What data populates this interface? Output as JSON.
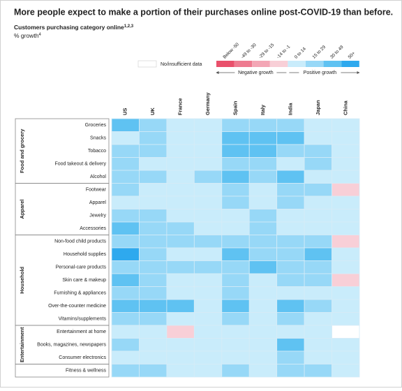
{
  "chart_data": {
    "type": "heatmap",
    "title": "More people expect to make a portion of their purchases online post-COVID-19 than before.",
    "subtitle": "Customers purchasing category online",
    "subtitle_sup": "1,2,3",
    "unit_label": "% growth",
    "unit_sup": "4",
    "legend": {
      "no_data": "No/insufficient data",
      "bins": [
        "Below -50",
        "-49 to -30",
        "-29 to -15",
        "-14 to -1",
        "0 to 14",
        "15 to 29",
        "30 to 49",
        "50+"
      ],
      "colors": [
        "#e9506b",
        "#ee7b90",
        "#f3a6b5",
        "#f8cfd7",
        "#c9ecfb",
        "#97d8f7",
        "#5fc2f2",
        "#2ea9ee"
      ],
      "negative": "Negative growth",
      "positive": "Positive growth"
    },
    "columns": [
      "US",
      "UK",
      "France",
      "Germany",
      "Spain",
      "Italy",
      "India",
      "Japan",
      "China"
    ],
    "groups": [
      {
        "name": "Food and grocery",
        "rows": [
          {
            "label": "Groceries",
            "values": [
              6,
              5,
              4,
              4,
              5,
              5,
              5,
              4,
              4
            ]
          },
          {
            "label": "Snacks",
            "values": [
              4,
              5,
              4,
              4,
              6,
              6,
              6,
              4,
              4
            ]
          },
          {
            "label": "Tobacco",
            "values": [
              5,
              5,
              4,
              4,
              6,
              6,
              5,
              5,
              4
            ]
          },
          {
            "label": "Food takeout & delivery",
            "values": [
              5,
              4,
              4,
              4,
              5,
              5,
              4,
              5,
              4
            ]
          },
          {
            "label": "Alcohol",
            "values": [
              5,
              5,
              4,
              5,
              6,
              5,
              6,
              4,
              4
            ]
          }
        ]
      },
      {
        "name": "Apparel",
        "rows": [
          {
            "label": "Footwear",
            "values": [
              5,
              4,
              4,
              4,
              5,
              4,
              5,
              5,
              3
            ]
          },
          {
            "label": "Apparel",
            "values": [
              4,
              4,
              4,
              4,
              5,
              4,
              5,
              4,
              4
            ]
          },
          {
            "label": "Jewelry",
            "values": [
              5,
              5,
              4,
              4,
              4,
              5,
              4,
              4,
              4
            ]
          },
          {
            "label": "Accessories",
            "values": [
              6,
              5,
              5,
              4,
              4,
              5,
              4,
              4,
              4
            ]
          }
        ]
      },
      {
        "name": "Household",
        "rows": [
          {
            "label": "Non-food child products",
            "values": [
              5,
              5,
              5,
              5,
              5,
              5,
              5,
              5,
              3
            ]
          },
          {
            "label": "Household supplies",
            "values": [
              7,
              5,
              4,
              4,
              6,
              5,
              5,
              6,
              4
            ]
          },
          {
            "label": "Personal-care products",
            "values": [
              5,
              5,
              5,
              5,
              5,
              6,
              5,
              5,
              4
            ]
          },
          {
            "label": "Skin care & makeup",
            "values": [
              6,
              5,
              4,
              4,
              5,
              4,
              5,
              5,
              3
            ]
          },
          {
            "label": "Furnishing & appliances",
            "values": [
              5,
              5,
              4,
              4,
              5,
              4,
              4,
              4,
              4
            ]
          },
          {
            "label": "Over-the-counter medicine",
            "values": [
              6,
              6,
              6,
              4,
              6,
              4,
              6,
              5,
              4
            ]
          },
          {
            "label": "Vitamins/supplements",
            "values": [
              5,
              5,
              4,
              4,
              5,
              4,
              5,
              4,
              4
            ]
          }
        ]
      },
      {
        "name": "Entertainment",
        "rows": [
          {
            "label": "Entertainment at home",
            "values": [
              4,
              4,
              3,
              4,
              4,
              4,
              4,
              4,
              null
            ]
          },
          {
            "label": "Books, magazines, newspapers",
            "values": [
              5,
              4,
              4,
              4,
              4,
              4,
              6,
              4,
              4
            ]
          },
          {
            "label": "Consumer electronics",
            "values": [
              4,
              4,
              4,
              4,
              4,
              4,
              5,
              4,
              4
            ]
          }
        ]
      },
      {
        "rows": [
          {
            "label": "Fitness & wellness",
            "values": [
              5,
              5,
              4,
              4,
              5,
              4,
              5,
              5,
              4
            ]
          }
        ]
      }
    ]
  }
}
